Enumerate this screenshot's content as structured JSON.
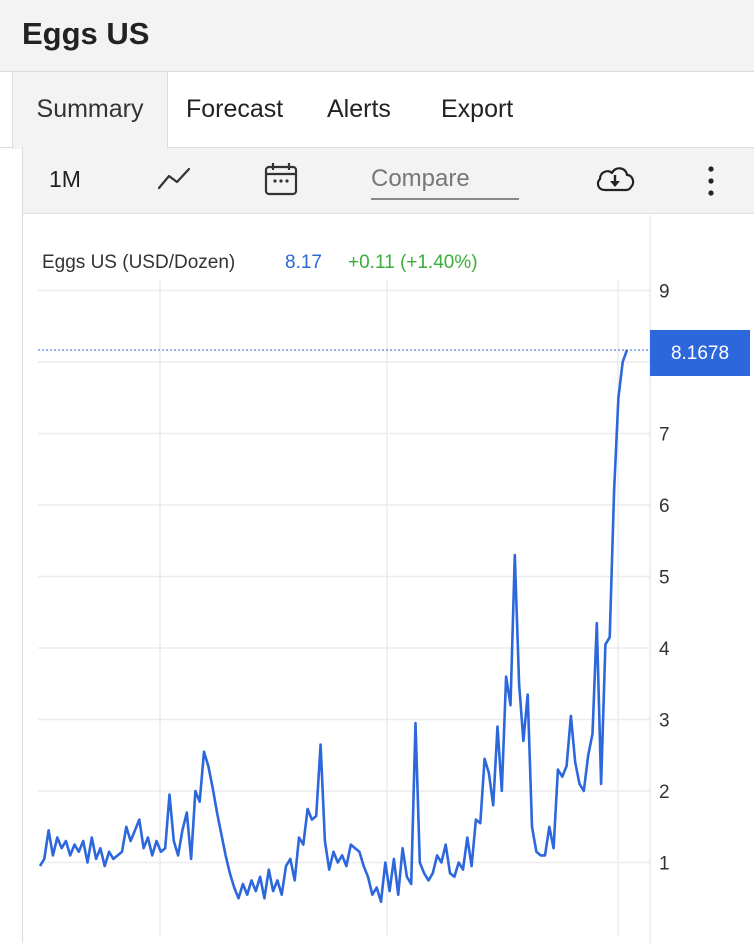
{
  "app": {
    "title": "Eggs US"
  },
  "tabs": [
    {
      "label": "Summary",
      "active": true
    },
    {
      "label": "Forecast",
      "active": false
    },
    {
      "label": "Alerts",
      "active": false
    },
    {
      "label": "Export",
      "active": false
    }
  ],
  "toolbar": {
    "period_label": "1M",
    "line_type_icon": "line-chart-icon",
    "calendar_icon": "calendar-icon",
    "compare_placeholder": "Compare",
    "download_icon": "cloud-download-icon",
    "more_icon": "more-vertical-icon"
  },
  "quote": {
    "name": "Eggs US (USD/Dozen)",
    "value": "8.17",
    "change": "+0.11 (+1.40%)"
  },
  "colors": {
    "line": "#2d67dc",
    "value_text": "#2d67dc",
    "change_text": "#3aae3a",
    "price_tag_bg": "#2d67dc"
  },
  "chart_data": {
    "type": "line",
    "title": "",
    "xlabel": "",
    "ylabel": "",
    "ylim": [
      0,
      9.5
    ],
    "yticks": [
      1,
      2,
      3,
      4,
      5,
      6,
      7,
      9
    ],
    "last_price_label": "8.1678",
    "last_price": 8.1678,
    "grid": true,
    "series": [
      {
        "values": [
          0.95,
          1.05,
          1.45,
          1.1,
          1.35,
          1.2,
          1.3,
          1.1,
          1.25,
          1.15,
          1.3,
          1.0,
          1.35,
          1.05,
          1.2,
          0.95,
          1.15,
          1.05,
          1.1,
          1.15,
          1.5,
          1.3,
          1.45,
          1.6,
          1.2,
          1.35,
          1.1,
          1.3,
          1.15,
          1.2,
          1.95,
          1.3,
          1.1,
          1.45,
          1.7,
          1.05,
          2.0,
          1.85,
          2.55,
          2.35,
          2.05,
          1.7,
          1.4,
          1.1,
          0.85,
          0.65,
          0.5,
          0.7,
          0.55,
          0.75,
          0.6,
          0.8,
          0.5,
          0.9,
          0.6,
          0.75,
          0.55,
          0.95,
          1.05,
          0.75,
          1.35,
          1.25,
          1.75,
          1.6,
          1.65,
          2.65,
          1.3,
          0.9,
          1.15,
          1.0,
          1.1,
          0.95,
          1.25,
          1.2,
          1.15,
          0.95,
          0.8,
          0.55,
          0.65,
          0.45,
          1.0,
          0.6,
          1.05,
          0.55,
          1.2,
          0.8,
          0.7,
          2.95,
          1.0,
          0.85,
          0.75,
          0.85,
          1.1,
          1.0,
          1.25,
          0.85,
          0.8,
          1.0,
          0.9,
          1.35,
          0.95,
          1.6,
          1.55,
          2.45,
          2.25,
          1.8,
          2.9,
          2.0,
          3.6,
          3.2,
          5.3,
          3.5,
          2.7,
          3.35,
          1.5,
          1.15,
          1.1,
          1.1,
          1.5,
          1.2,
          2.3,
          2.2,
          2.35,
          3.05,
          2.4,
          2.1,
          2.0,
          2.5,
          2.8,
          4.35,
          2.1,
          4.05,
          4.15,
          6.2,
          7.5,
          8.0,
          8.17
        ]
      }
    ]
  }
}
